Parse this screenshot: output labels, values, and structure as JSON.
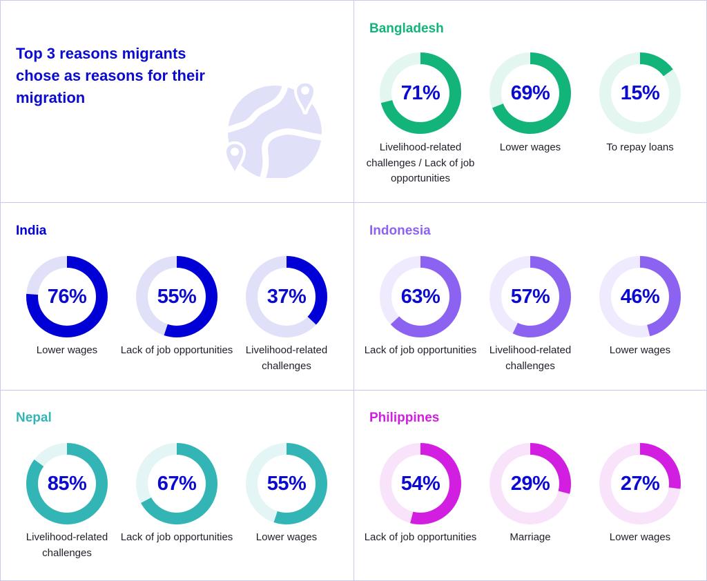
{
  "title": "Top 3 reasons migrants chose as reasons for their migration",
  "icon": "globe-with-location-pins-icon",
  "colors": {
    "percent_text": "#0a0ad0",
    "label_text": "#1e1e28",
    "grid": "#c9c9ef",
    "globe": "#e0e0f8"
  },
  "chart_data": {
    "type": "pie",
    "subtype": "donut-gauges",
    "title": "Top 3 reasons migrants chose as reasons for their migration",
    "unit": "%",
    "countries": [
      {
        "name": "Bangladesh",
        "color": "#12b47a",
        "track": "#e3f6ef",
        "reasons": [
          {
            "label": "Livelihood-related challenges / Lack of job opportunities",
            "value": 71,
            "display": "71%"
          },
          {
            "label": "Lower wages",
            "value": 69,
            "display": "69%"
          },
          {
            "label": "To repay loans",
            "value": 15,
            "display": "15%"
          }
        ]
      },
      {
        "name": "India",
        "color": "#0000d6",
        "track": "#e0e0f8",
        "reasons": [
          {
            "label": "Lower wages",
            "value": 76,
            "display": "76%"
          },
          {
            "label": "Lack of job opportunities",
            "value": 55,
            "display": "55%"
          },
          {
            "label": "Livelihood-related challenges",
            "value": 37,
            "display": "37%"
          }
        ]
      },
      {
        "name": "Indonesia",
        "color": "#8b63f0",
        "track": "#efeafd",
        "reasons": [
          {
            "label": "Lack of job opportunities",
            "value": 63,
            "display": "63%"
          },
          {
            "label": "Livelihood-related challenges",
            "value": 57,
            "display": "57%"
          },
          {
            "label": "Lower wages",
            "value": 46,
            "display": "46%"
          }
        ]
      },
      {
        "name": "Nepal",
        "color": "#33b5b5",
        "track": "#e3f5f5",
        "reasons": [
          {
            "label": "Livelihood-related challenges",
            "value": 85,
            "display": "85%"
          },
          {
            "label": "Lack of job opportunities",
            "value": 67,
            "display": "67%"
          },
          {
            "label": "Lower wages",
            "value": 55,
            "display": "55%"
          }
        ]
      },
      {
        "name": "Philippines",
        "color": "#d21ee0",
        "track": "#f9e3fb",
        "reasons": [
          {
            "label": "Lack of job opportunities",
            "value": 54,
            "display": "54%"
          },
          {
            "label": "Marriage",
            "value": 29,
            "display": "29%"
          },
          {
            "label": "Lower wages",
            "value": 27,
            "display": "27%"
          }
        ]
      }
    ]
  }
}
